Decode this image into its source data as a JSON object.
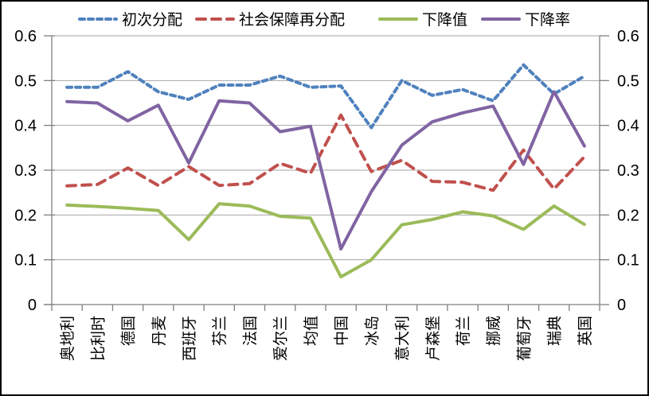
{
  "chart_data": {
    "type": "line",
    "title": "",
    "xlabel": "",
    "ylabel": "",
    "categories": [
      "奥地利",
      "比利时",
      "德国",
      "丹麦",
      "西班牙",
      "芬兰",
      "法国",
      "爱尔兰",
      "均值",
      "中国",
      "冰岛",
      "意大利",
      "卢森堡",
      "荷兰",
      "挪威",
      "葡萄牙",
      "瑞典",
      "英国"
    ],
    "series": [
      {
        "key": "primary-distribution",
        "name": "初次分配",
        "color": "#4F81BD",
        "style": "dashed-short",
        "values": [
          0.485,
          0.485,
          0.52,
          0.475,
          0.458,
          0.49,
          0.49,
          0.51,
          0.485,
          0.488,
          0.395,
          0.5,
          0.467,
          0.48,
          0.455,
          0.535,
          0.47,
          0.51
        ]
      },
      {
        "key": "social-security-redistribution",
        "name": "社会保障再分配",
        "color": "#C0504D",
        "style": "dashed-long",
        "values": [
          0.265,
          0.268,
          0.305,
          0.266,
          0.308,
          0.266,
          0.27,
          0.315,
          0.293,
          0.423,
          0.297,
          0.322,
          0.275,
          0.273,
          0.255,
          0.345,
          0.258,
          0.33
        ]
      },
      {
        "key": "decline-value",
        "name": "下降值",
        "color": "#9BBB59",
        "style": "solid",
        "values": [
          0.222,
          0.219,
          0.215,
          0.21,
          0.145,
          0.225,
          0.22,
          0.197,
          0.193,
          0.062,
          0.1,
          0.178,
          0.19,
          0.207,
          0.198,
          0.168,
          0.22,
          0.179
        ]
      },
      {
        "key": "decline-rate",
        "name": "下降率",
        "color": "#8064A2",
        "style": "solid",
        "values": [
          0.453,
          0.45,
          0.41,
          0.445,
          0.316,
          0.455,
          0.45,
          0.386,
          0.398,
          0.124,
          0.252,
          0.356,
          0.408,
          0.428,
          0.443,
          0.313,
          0.475,
          0.354
        ]
      }
    ],
    "ylim": [
      0,
      0.6
    ],
    "yticks": [
      "0",
      "0.1",
      "0.2",
      "0.3",
      "0.4",
      "0.5",
      "0.6"
    ],
    "y_axis_right_mirror": true,
    "grid": true,
    "legend_position": "top"
  },
  "colors": {
    "background": "#FFFFFF",
    "gridline": "#A6A6A6",
    "axis": "#808080",
    "text": "#000000"
  }
}
